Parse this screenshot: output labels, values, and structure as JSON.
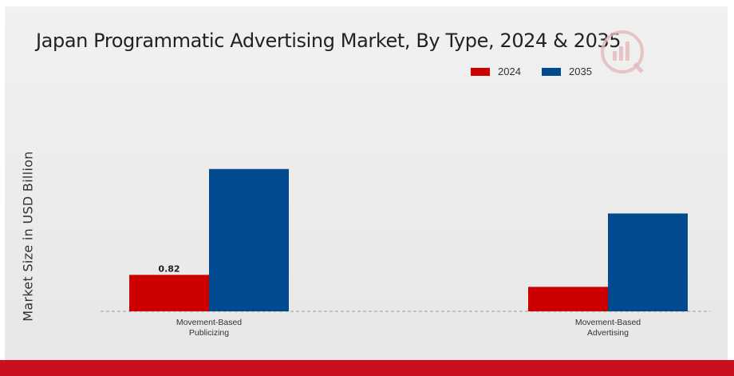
{
  "colors": {
    "series_2024": "#cc0000",
    "series_2035": "#004a8d",
    "bottom_bar": "#c8101e"
  },
  "chart_data": {
    "type": "bar",
    "title": "Japan Programmatic Advertising Market, By Type, 2024 & 2035",
    "ylabel": "Market Size in USD Billion",
    "xlabel": "",
    "categories": [
      [
        "Movement-Based",
        "Publicizing"
      ],
      [
        "Movement-Based",
        "Advertising"
      ]
    ],
    "series": [
      {
        "name": "2024",
        "color": "#cc0000",
        "values": [
          0.82,
          0.55
        ]
      },
      {
        "name": "2035",
        "color": "#004a8d",
        "values": [
          3.2,
          2.2
        ]
      }
    ],
    "data_labels": [
      {
        "series": 0,
        "category": 0,
        "text": "0.82"
      }
    ],
    "ylim": [
      0,
      3.5
    ],
    "grid": false,
    "legend_position": "top-right"
  }
}
